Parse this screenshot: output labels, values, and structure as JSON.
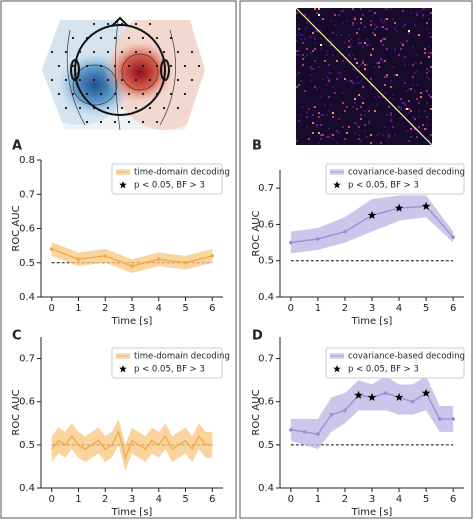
{
  "chart_data": [
    {
      "type": "line",
      "panel": "A",
      "ylabel": "ROC AUC",
      "xlabel": "Time [s]",
      "xlim": [
        -0.4,
        6.4
      ],
      "xticks": [
        0,
        1,
        2,
        3,
        4,
        5,
        6
      ],
      "ylim": [
        0.4,
        0.8
      ],
      "yticks": [
        0.4,
        0.5,
        0.6,
        0.7,
        0.8
      ],
      "chance": 0.5,
      "markers": true,
      "x": [
        0,
        1,
        2,
        3,
        4,
        5,
        6
      ],
      "series": [
        {
          "name": "time-domain decoding",
          "color": "#f5a742",
          "band_color": "#f7c57f",
          "values": [
            0.54,
            0.51,
            0.52,
            0.49,
            0.51,
            0.5,
            0.52
          ],
          "lower": [
            0.52,
            0.49,
            0.5,
            0.47,
            0.49,
            0.48,
            0.5
          ],
          "upper": [
            0.56,
            0.53,
            0.54,
            0.51,
            0.53,
            0.52,
            0.54
          ]
        }
      ],
      "significance": {
        "name": "p < 0.05, BF > 3",
        "x": [],
        "values": []
      }
    },
    {
      "type": "line",
      "panel": "B",
      "ylabel": "ROC AUC",
      "xlabel": "Time [s]",
      "xlim": [
        -0.4,
        6.4
      ],
      "xticks": [
        0,
        1,
        2,
        3,
        4,
        5,
        6
      ],
      "ylim": [
        0.4,
        0.75
      ],
      "yticks": [
        0.4,
        0.5,
        0.6,
        0.7
      ],
      "chance": 0.5,
      "markers": true,
      "x": [
        0,
        1,
        2,
        3,
        4,
        5,
        6
      ],
      "series": [
        {
          "name": "covariance-based decoding",
          "color": "#9590d4",
          "band_color": "#b8b4e4",
          "values": [
            0.55,
            0.56,
            0.58,
            0.625,
            0.645,
            0.65,
            0.565
          ],
          "lower": [
            0.52,
            0.53,
            0.55,
            0.58,
            0.61,
            0.62,
            0.55
          ],
          "upper": [
            0.58,
            0.59,
            0.62,
            0.67,
            0.68,
            0.68,
            0.58
          ]
        }
      ],
      "significance": {
        "name": "p < 0.05, BF > 3",
        "x": [
          3,
          4,
          5
        ],
        "values": [
          0.625,
          0.645,
          0.65
        ]
      }
    },
    {
      "type": "line",
      "panel": "C",
      "ylabel": "ROC AUC",
      "xlabel": "Time [s]",
      "xlim": [
        -0.4,
        6.4
      ],
      "xticks": [
        0,
        1,
        2,
        3,
        4,
        5,
        6
      ],
      "ylim": [
        0.4,
        0.75
      ],
      "yticks": [
        0.4,
        0.5,
        0.6,
        0.7
      ],
      "chance": 0.5,
      "markers": false,
      "x": [
        0,
        0.25,
        0.5,
        0.75,
        1,
        1.25,
        1.5,
        1.75,
        2,
        2.25,
        2.5,
        2.75,
        3,
        3.25,
        3.5,
        3.75,
        4,
        4.25,
        4.5,
        4.75,
        5,
        5.25,
        5.5,
        5.75,
        6
      ],
      "series": [
        {
          "name": "time-domain decoding",
          "color": "#f5a742",
          "band_color": "#f7c57f",
          "values": [
            0.49,
            0.51,
            0.5,
            0.52,
            0.5,
            0.49,
            0.5,
            0.51,
            0.49,
            0.5,
            0.53,
            0.47,
            0.51,
            0.5,
            0.49,
            0.51,
            0.5,
            0.52,
            0.49,
            0.5,
            0.51,
            0.49,
            0.52,
            0.5,
            0.5
          ],
          "lower": [
            0.46,
            0.48,
            0.47,
            0.49,
            0.47,
            0.46,
            0.47,
            0.48,
            0.46,
            0.47,
            0.5,
            0.44,
            0.48,
            0.47,
            0.46,
            0.48,
            0.47,
            0.49,
            0.46,
            0.47,
            0.48,
            0.46,
            0.49,
            0.47,
            0.47
          ],
          "upper": [
            0.52,
            0.54,
            0.53,
            0.55,
            0.53,
            0.52,
            0.53,
            0.54,
            0.52,
            0.53,
            0.56,
            0.5,
            0.54,
            0.53,
            0.52,
            0.54,
            0.53,
            0.55,
            0.52,
            0.53,
            0.54,
            0.52,
            0.55,
            0.53,
            0.53
          ]
        }
      ],
      "significance": {
        "name": "p < 0.05, BF > 3",
        "x": [],
        "values": []
      }
    },
    {
      "type": "line",
      "panel": "D",
      "ylabel": "ROC AUC",
      "xlabel": "Time [s]",
      "xlim": [
        -0.4,
        6.4
      ],
      "xticks": [
        0,
        1,
        2,
        3,
        4,
        5,
        6
      ],
      "ylim": [
        0.4,
        0.75
      ],
      "yticks": [
        0.4,
        0.5,
        0.6,
        0.7
      ],
      "chance": 0.5,
      "markers": true,
      "x": [
        0,
        0.5,
        1,
        1.5,
        2,
        2.5,
        3,
        3.5,
        4,
        4.5,
        5,
        5.5,
        6
      ],
      "series": [
        {
          "name": "covariance-based decoding",
          "color": "#9590d4",
          "band_color": "#b8b4e4",
          "values": [
            0.535,
            0.53,
            0.525,
            0.57,
            0.58,
            0.615,
            0.61,
            0.62,
            0.61,
            0.6,
            0.62,
            0.56,
            0.56
          ],
          "lower": [
            0.51,
            0.5,
            0.49,
            0.53,
            0.55,
            0.58,
            0.58,
            0.58,
            0.57,
            0.57,
            0.58,
            0.53,
            0.53
          ],
          "upper": [
            0.56,
            0.56,
            0.56,
            0.61,
            0.62,
            0.65,
            0.64,
            0.66,
            0.64,
            0.64,
            0.66,
            0.59,
            0.59
          ]
        }
      ],
      "significance": {
        "name": "p < 0.05, BF > 3",
        "x": [
          2.5,
          3,
          4,
          5
        ],
        "values": [
          0.615,
          0.61,
          0.61,
          0.62
        ]
      }
    }
  ]
}
